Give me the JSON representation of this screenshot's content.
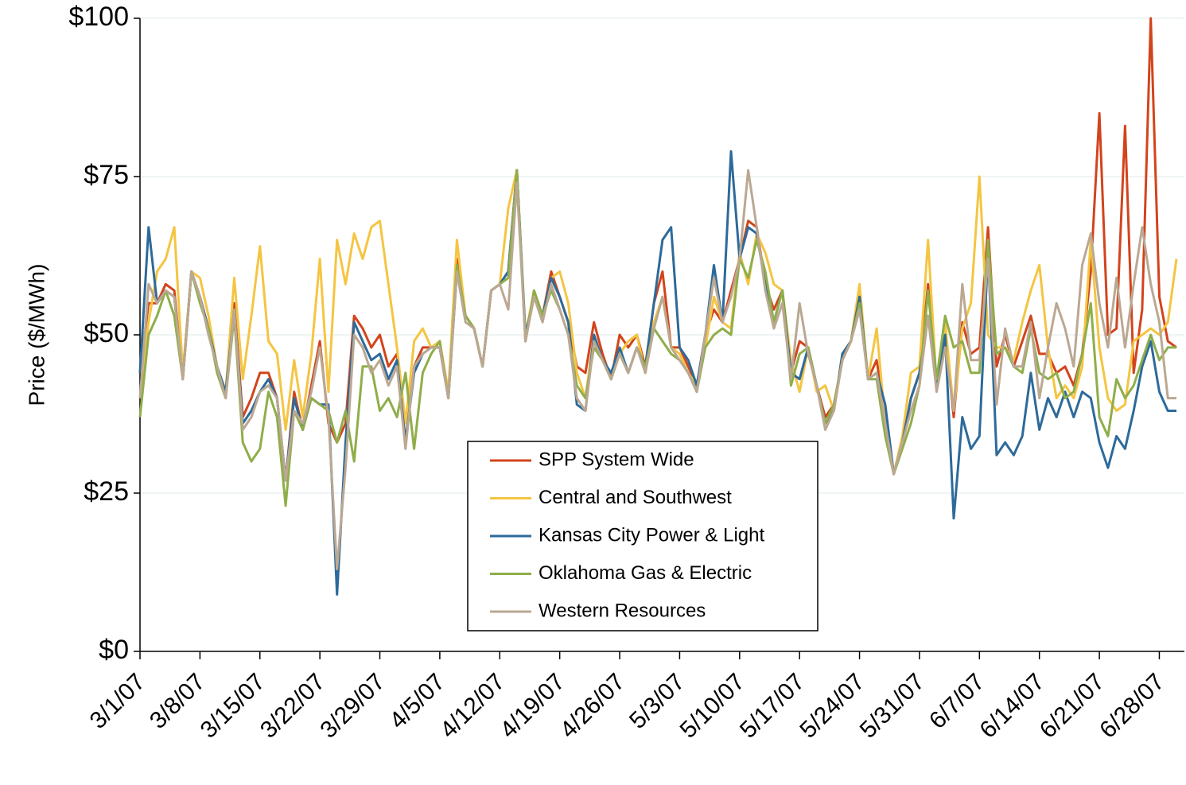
{
  "chart_data": {
    "type": "line",
    "y_label": "Price ($/MWh)",
    "categories": [
      "3/1/07",
      null,
      null,
      null,
      null,
      null,
      null,
      "3/8/07",
      null,
      null,
      null,
      null,
      null,
      null,
      "3/15/07",
      null,
      null,
      null,
      null,
      null,
      null,
      "3/22/07",
      null,
      null,
      null,
      null,
      null,
      null,
      "3/29/07",
      null,
      null,
      null,
      null,
      null,
      null,
      "4/5/07",
      null,
      null,
      null,
      null,
      null,
      null,
      "4/12/07",
      null,
      null,
      null,
      null,
      null,
      null,
      "4/19/07",
      null,
      null,
      null,
      null,
      null,
      null,
      "4/26/07",
      null,
      null,
      null,
      null,
      null,
      null,
      "5/3/07",
      null,
      null,
      null,
      null,
      null,
      null,
      "5/10/07",
      null,
      null,
      null,
      null,
      null,
      null,
      "5/17/07",
      null,
      null,
      null,
      null,
      null,
      null,
      "5/24/07",
      null,
      null,
      null,
      null,
      null,
      null,
      "5/31/07",
      null,
      null,
      null,
      null,
      null,
      null,
      "6/7/07",
      null,
      null,
      null,
      null,
      null,
      null,
      "6/14/07",
      null,
      null,
      null,
      null,
      null,
      null,
      "6/21/07",
      null,
      null,
      null,
      null,
      null,
      null,
      "6/28/07",
      null,
      null
    ],
    "series": [
      {
        "name": "SPP System Wide",
        "color": "#d2441c",
        "values": [
          44,
          55,
          55,
          58,
          57,
          43,
          60,
          56,
          51,
          45,
          41,
          55,
          37,
          40,
          44,
          44,
          40,
          27,
          41,
          35,
          42,
          49,
          36,
          33,
          36,
          53,
          51,
          48,
          50,
          45,
          47,
          33,
          45,
          48,
          48,
          48,
          40,
          62,
          53,
          51,
          45,
          57,
          58,
          60,
          76,
          49,
          57,
          53,
          60,
          56,
          52,
          45,
          44,
          52,
          47,
          43,
          50,
          48,
          50,
          45,
          55,
          60,
          48,
          48,
          45,
          42,
          50,
          54,
          52,
          57,
          62,
          68,
          67,
          58,
          54,
          57,
          44,
          49,
          48,
          42,
          37,
          39,
          46,
          49,
          55,
          43,
          46,
          37,
          28,
          33,
          40,
          44,
          58,
          42,
          50,
          37,
          52,
          47,
          48,
          67,
          45,
          50,
          45,
          49,
          53,
          47,
          47,
          44,
          45,
          42,
          47,
          60,
          85,
          50,
          51,
          83,
          44,
          54,
          100,
          56,
          49,
          48
        ]
      },
      {
        "name": "Central and Southwest",
        "color": "#f4c542",
        "values": [
          40,
          52,
          60,
          62,
          67,
          44,
          60,
          59,
          53,
          45,
          41,
          59,
          43,
          53,
          64,
          49,
          47,
          35,
          46,
          37,
          47,
          62,
          41,
          65,
          58,
          66,
          62,
          67,
          68,
          58,
          48,
          36,
          49,
          51,
          48,
          49,
          41,
          65,
          53,
          51,
          45,
          57,
          58,
          70,
          76,
          50,
          57,
          53,
          59,
          60,
          55,
          44,
          40,
          50,
          46,
          43,
          47,
          49,
          50,
          44,
          52,
          56,
          48,
          47,
          44,
          42,
          48,
          56,
          52,
          51,
          63,
          58,
          66,
          63,
          58,
          57,
          46,
          41,
          48,
          41,
          42,
          38,
          47,
          49,
          58,
          43,
          51,
          36,
          28,
          34,
          44,
          45,
          65,
          42,
          52,
          38,
          51,
          55,
          75,
          50,
          48,
          48,
          46,
          52,
          57,
          61,
          48,
          40,
          42,
          40,
          45,
          65,
          48,
          40,
          38,
          39,
          49,
          50,
          51,
          50,
          52,
          62
        ]
      },
      {
        "name": "Kansas City Power & Light",
        "color": "#2d6a9a",
        "values": [
          44,
          67,
          55,
          57,
          56,
          43,
          60,
          56,
          51,
          45,
          41,
          54,
          36,
          38,
          41,
          43,
          40,
          27,
          40,
          35,
          40,
          39,
          39,
          9,
          33,
          52,
          49,
          46,
          47,
          43,
          46,
          33,
          44,
          47,
          48,
          48,
          40,
          60,
          53,
          51,
          45,
          57,
          58,
          60,
          76,
          50,
          56,
          53,
          59,
          56,
          52,
          39,
          38,
          50,
          46,
          44,
          48,
          44,
          48,
          45,
          55,
          65,
          67,
          48,
          46,
          42,
          50,
          61,
          52,
          79,
          62,
          67,
          66,
          58,
          52,
          57,
          44,
          43,
          48,
          42,
          36,
          38,
          47,
          49,
          56,
          43,
          44,
          39,
          28,
          33,
          40,
          44,
          53,
          42,
          50,
          21,
          37,
          32,
          34,
          63,
          31,
          33,
          31,
          34,
          44,
          35,
          40,
          37,
          41,
          37,
          41,
          40,
          33,
          29,
          34,
          32,
          38,
          45,
          49,
          41,
          38,
          38
        ]
      },
      {
        "name": "Oklahoma Gas & Electric",
        "color": "#8fae4a",
        "values": [
          37,
          50,
          53,
          57,
          53,
          43,
          60,
          55,
          51,
          44,
          40,
          53,
          33,
          30,
          32,
          41,
          37,
          23,
          38,
          35,
          40,
          39,
          38,
          33,
          38,
          30,
          45,
          45,
          38,
          40,
          37,
          44,
          32,
          44,
          47,
          49,
          40,
          61,
          53,
          51,
          45,
          57,
          58,
          59,
          76,
          49,
          57,
          53,
          57,
          54,
          50,
          42,
          40,
          48,
          46,
          43,
          47,
          44,
          48,
          45,
          51,
          49,
          47,
          46,
          44,
          41,
          48,
          50,
          51,
          50,
          62,
          59,
          65,
          60,
          52,
          57,
          42,
          47,
          48,
          42,
          36,
          39,
          46,
          49,
          55,
          43,
          43,
          34,
          28,
          32,
          36,
          42,
          57,
          43,
          53,
          48,
          49,
          44,
          44,
          65,
          47,
          48,
          45,
          44,
          51,
          44,
          43,
          44,
          40,
          41,
          47,
          55,
          37,
          34,
          43,
          40,
          42,
          46,
          50,
          46,
          48,
          48
        ]
      },
      {
        "name": "Western Resources",
        "color": "#bba892",
        "values": [
          40,
          58,
          55,
          57,
          56,
          43,
          60,
          56,
          50,
          45,
          40,
          54,
          35,
          37,
          41,
          42,
          40,
          27,
          38,
          36,
          41,
          48,
          37,
          13,
          29,
          50,
          48,
          44,
          46,
          42,
          45,
          32,
          45,
          47,
          48,
          48,
          40,
          60,
          52,
          51,
          45,
          57,
          58,
          54,
          74,
          49,
          56,
          52,
          58,
          54,
          50,
          40,
          38,
          49,
          46,
          43,
          47,
          44,
          48,
          44,
          51,
          56,
          48,
          46,
          44,
          41,
          50,
          59,
          52,
          56,
          62,
          76,
          67,
          57,
          51,
          55,
          43,
          55,
          47,
          42,
          35,
          38,
          46,
          49,
          54,
          43,
          44,
          36,
          28,
          33,
          38,
          42,
          53,
          41,
          48,
          38,
          58,
          46,
          46,
          62,
          39,
          51,
          45,
          45,
          52,
          40,
          48,
          55,
          51,
          45,
          61,
          66,
          55,
          48,
          59,
          48,
          58,
          67,
          58,
          52,
          40,
          40
        ]
      }
    ],
    "ylim": [
      0,
      100
    ],
    "yticks": [
      {
        "value": 0,
        "label": "$0"
      },
      {
        "value": 25,
        "label": "$25"
      },
      {
        "value": 50,
        "label": "$50"
      },
      {
        "value": 75,
        "label": "$75"
      },
      {
        "value": 100,
        "label": "$100"
      }
    ],
    "grid": true,
    "legend": "center"
  }
}
